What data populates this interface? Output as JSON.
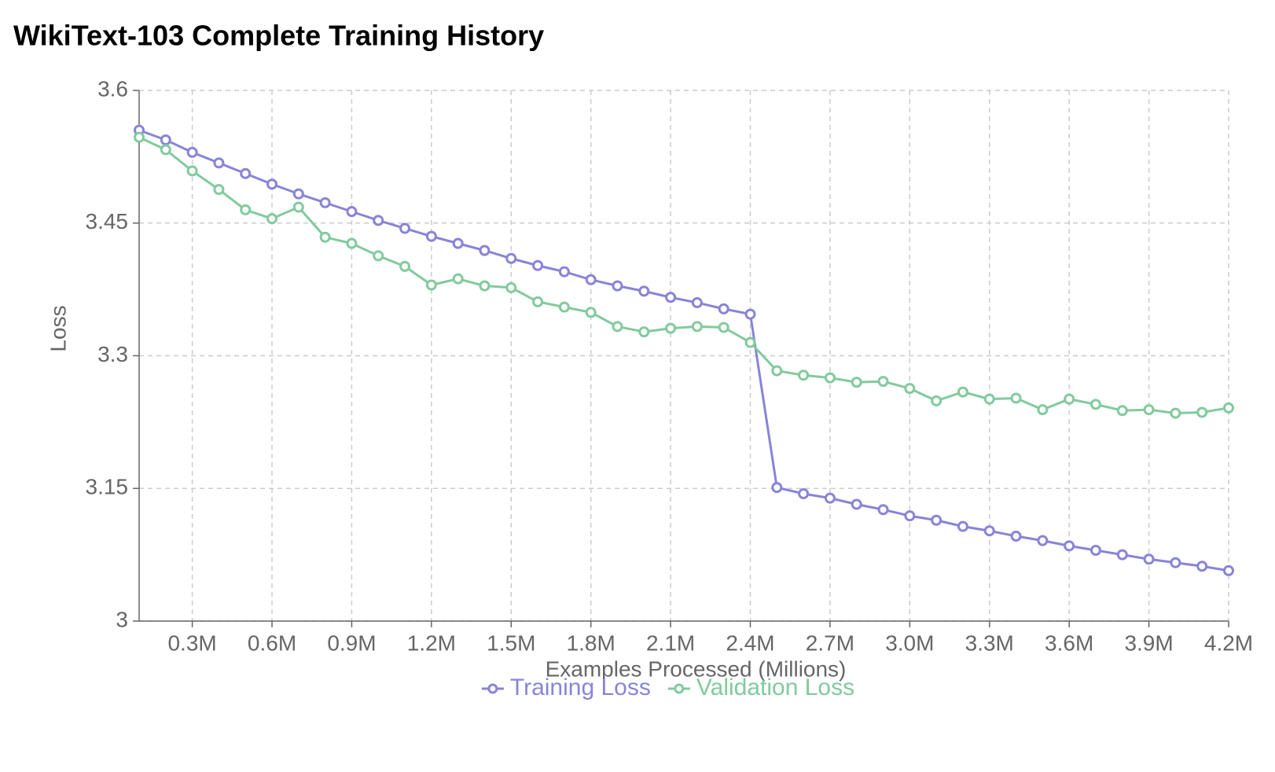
{
  "chart_data": {
    "type": "line",
    "title": "WikiText-103 Complete Training History",
    "x_label": "Examples Processed (Millions)",
    "y_label": "Loss",
    "x": [
      0.1,
      0.2,
      0.3,
      0.4,
      0.5,
      0.6,
      0.7,
      0.8,
      0.9,
      1.0,
      1.1,
      1.2,
      1.3,
      1.4,
      1.5,
      1.6,
      1.7,
      1.8,
      1.9,
      2.0,
      2.1,
      2.2,
      2.3,
      2.4,
      2.5,
      2.6,
      2.7,
      2.8,
      2.9,
      3.0,
      3.1,
      3.2,
      3.3,
      3.4,
      3.5,
      3.6,
      3.7,
      3.8,
      3.9,
      4.0,
      4.1,
      4.2
    ],
    "series": [
      {
        "name": "Training Loss",
        "color": "#8884d8",
        "values": [
          3.555,
          3.544,
          3.53,
          3.518,
          3.506,
          3.494,
          3.483,
          3.473,
          3.463,
          3.453,
          3.444,
          3.435,
          3.427,
          3.419,
          3.41,
          3.402,
          3.395,
          3.386,
          3.379,
          3.373,
          3.366,
          3.36,
          3.353,
          3.347,
          3.151,
          3.144,
          3.139,
          3.132,
          3.126,
          3.119,
          3.114,
          3.107,
          3.102,
          3.096,
          3.091,
          3.085,
          3.08,
          3.075,
          3.07,
          3.066,
          3.062,
          3.057
        ]
      },
      {
        "name": "Validation Loss",
        "color": "#82ca9d",
        "values": [
          3.547,
          3.533,
          3.509,
          3.488,
          3.465,
          3.455,
          3.468,
          3.434,
          3.427,
          3.413,
          3.401,
          3.38,
          3.387,
          3.379,
          3.377,
          3.361,
          3.355,
          3.349,
          3.333,
          3.327,
          3.331,
          3.333,
          3.332,
          3.315,
          3.283,
          3.278,
          3.275,
          3.27,
          3.271,
          3.263,
          3.249,
          3.259,
          3.251,
          3.252,
          3.239,
          3.251,
          3.245,
          3.238,
          3.239,
          3.235,
          3.236,
          3.241
        ]
      }
    ],
    "xlim": [
      0.1,
      4.2
    ],
    "xticks": [
      {
        "value": 0.3,
        "label": "0.3M"
      },
      {
        "value": 0.6,
        "label": "0.6M"
      },
      {
        "value": 0.9,
        "label": "0.9M"
      },
      {
        "value": 1.2,
        "label": "1.2M"
      },
      {
        "value": 1.5,
        "label": "1.5M"
      },
      {
        "value": 1.8,
        "label": "1.8M"
      },
      {
        "value": 2.1,
        "label": "2.1M"
      },
      {
        "value": 2.4,
        "label": "2.4M"
      },
      {
        "value": 2.7,
        "label": "2.7M"
      },
      {
        "value": 3.0,
        "label": "3.0M"
      },
      {
        "value": 3.3,
        "label": "3.3M"
      },
      {
        "value": 3.6,
        "label": "3.6M"
      },
      {
        "value": 3.9,
        "label": "3.9M"
      },
      {
        "value": 4.2,
        "label": "4.2M"
      }
    ],
    "ylim": [
      3,
      3.6
    ],
    "yticks": [
      3,
      3.15,
      3.3,
      3.45,
      3.6
    ],
    "grid": true,
    "legend": "bottom"
  }
}
